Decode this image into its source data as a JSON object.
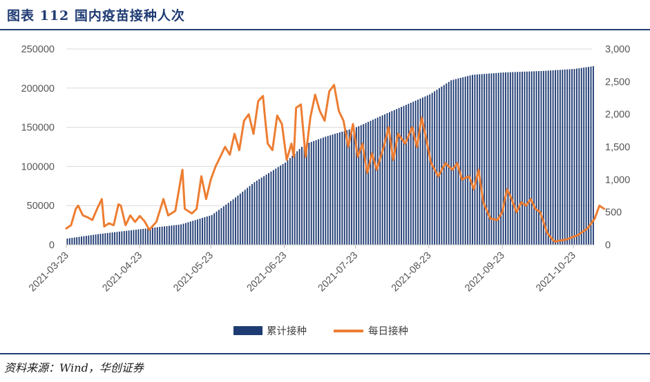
{
  "header": {
    "title": "图表 112    国内疫苗接种人次"
  },
  "footer": {
    "source": "资料来源：Wind，华创证券"
  },
  "colors": {
    "bar": "#1f3b73",
    "line": "#ed7d31",
    "grid": "#d9d9d9",
    "rule": "#1f3b73"
  },
  "chart_data": {
    "type": "bar",
    "x_start": "2021-03-23",
    "x_end": "2021-10-31",
    "x_tick_labels": [
      "2021-03-23",
      "2021-04-23",
      "2021-05-23",
      "2021-06-23",
      "2021-07-23",
      "2021-08-23",
      "2021-09-23",
      "2021-10-23"
    ],
    "y_left": {
      "min": 0,
      "max": 250000,
      "tick_labels": [
        "0",
        "50000",
        "100000",
        "150000",
        "200000",
        "250000"
      ]
    },
    "y_right": {
      "min": 0,
      "max": 3000,
      "tick_labels": [
        "0",
        "500",
        "1,000",
        "1,500",
        "2,000",
        "2,500",
        "3,000"
      ]
    },
    "legend_position": "bottom",
    "gridlines": true,
    "series": [
      {
        "name": "累计接种",
        "type": "bar",
        "axis": "left",
        "points": [
          [
            "2021-03-23",
            8000
          ],
          [
            "2021-04-06",
            14000
          ],
          [
            "2021-04-23",
            20000
          ],
          [
            "2021-05-10",
            26000
          ],
          [
            "2021-05-23",
            38000
          ],
          [
            "2021-06-01",
            58000
          ],
          [
            "2021-06-10",
            80000
          ],
          [
            "2021-06-23",
            105000
          ],
          [
            "2021-07-01",
            128000
          ],
          [
            "2021-07-10",
            138000
          ],
          [
            "2021-07-23",
            150000
          ],
          [
            "2021-08-05",
            168000
          ],
          [
            "2021-08-23",
            192000
          ],
          [
            "2021-09-01",
            210000
          ],
          [
            "2021-09-10",
            217000
          ],
          [
            "2021-09-23",
            220000
          ],
          [
            "2021-10-10",
            222000
          ],
          [
            "2021-10-23",
            224500
          ],
          [
            "2021-10-31",
            228000
          ]
        ]
      },
      {
        "name": "每日接种",
        "type": "line",
        "axis": "right",
        "points": [
          [
            "2021-03-23",
            250
          ],
          [
            "2021-03-25",
            300
          ],
          [
            "2021-03-27",
            550
          ],
          [
            "2021-03-28",
            600
          ],
          [
            "2021-03-30",
            450
          ],
          [
            "2021-04-01",
            420
          ],
          [
            "2021-04-03",
            380
          ],
          [
            "2021-04-05",
            550
          ],
          [
            "2021-04-07",
            700
          ],
          [
            "2021-04-08",
            280
          ],
          [
            "2021-04-10",
            330
          ],
          [
            "2021-04-12",
            300
          ],
          [
            "2021-04-14",
            620
          ],
          [
            "2021-04-15",
            600
          ],
          [
            "2021-04-17",
            300
          ],
          [
            "2021-04-19",
            450
          ],
          [
            "2021-04-21",
            350
          ],
          [
            "2021-04-23",
            440
          ],
          [
            "2021-04-25",
            360
          ],
          [
            "2021-04-27",
            230
          ],
          [
            "2021-04-30",
            350
          ],
          [
            "2021-05-03",
            700
          ],
          [
            "2021-05-05",
            450
          ],
          [
            "2021-05-08",
            520
          ],
          [
            "2021-05-11",
            1150
          ],
          [
            "2021-05-12",
            550
          ],
          [
            "2021-05-15",
            480
          ],
          [
            "2021-05-17",
            550
          ],
          [
            "2021-05-19",
            1050
          ],
          [
            "2021-05-21",
            700
          ],
          [
            "2021-05-23",
            1000
          ],
          [
            "2021-05-25",
            1200
          ],
          [
            "2021-05-27",
            1350
          ],
          [
            "2021-05-29",
            1500
          ],
          [
            "2021-05-31",
            1380
          ],
          [
            "2021-06-02",
            1700
          ],
          [
            "2021-06-04",
            1450
          ],
          [
            "2021-06-06",
            1900
          ],
          [
            "2021-06-08",
            2000
          ],
          [
            "2021-06-10",
            1700
          ],
          [
            "2021-06-12",
            2200
          ],
          [
            "2021-06-14",
            2280
          ],
          [
            "2021-06-15",
            1900
          ],
          [
            "2021-06-16",
            1550
          ],
          [
            "2021-06-18",
            1450
          ],
          [
            "2021-06-20",
            1980
          ],
          [
            "2021-06-22",
            1850
          ],
          [
            "2021-06-24",
            1300
          ],
          [
            "2021-06-26",
            1550
          ],
          [
            "2021-06-27",
            1350
          ],
          [
            "2021-06-28",
            2100
          ],
          [
            "2021-06-30",
            2150
          ],
          [
            "2021-07-02",
            1350
          ],
          [
            "2021-07-04",
            1950
          ],
          [
            "2021-07-06",
            2300
          ],
          [
            "2021-07-08",
            2050
          ],
          [
            "2021-07-10",
            1900
          ],
          [
            "2021-07-12",
            2350
          ],
          [
            "2021-07-14",
            2450
          ],
          [
            "2021-07-16",
            2050
          ],
          [
            "2021-07-18",
            1900
          ],
          [
            "2021-07-20",
            1500
          ],
          [
            "2021-07-22",
            1850
          ],
          [
            "2021-07-24",
            1350
          ],
          [
            "2021-07-26",
            1550
          ],
          [
            "2021-07-28",
            1100
          ],
          [
            "2021-07-30",
            1400
          ],
          [
            "2021-08-01",
            1150
          ],
          [
            "2021-08-04",
            1500
          ],
          [
            "2021-08-06",
            1800
          ],
          [
            "2021-08-08",
            1300
          ],
          [
            "2021-08-10",
            1700
          ],
          [
            "2021-08-13",
            1550
          ],
          [
            "2021-08-16",
            1800
          ],
          [
            "2021-08-18",
            1500
          ],
          [
            "2021-08-20",
            1950
          ],
          [
            "2021-08-22",
            1600
          ],
          [
            "2021-08-24",
            1250
          ],
          [
            "2021-08-27",
            1050
          ],
          [
            "2021-08-30",
            1250
          ],
          [
            "2021-09-02",
            1150
          ],
          [
            "2021-09-04",
            1250
          ],
          [
            "2021-09-06",
            1000
          ],
          [
            "2021-09-09",
            1050
          ],
          [
            "2021-09-11",
            850
          ],
          [
            "2021-09-13",
            1150
          ],
          [
            "2021-09-15",
            650
          ],
          [
            "2021-09-18",
            400
          ],
          [
            "2021-09-21",
            380
          ],
          [
            "2021-09-23",
            500
          ],
          [
            "2021-09-25",
            850
          ],
          [
            "2021-09-27",
            700
          ],
          [
            "2021-09-29",
            500
          ],
          [
            "2021-10-01",
            650
          ],
          [
            "2021-10-03",
            600
          ],
          [
            "2021-10-05",
            700
          ],
          [
            "2021-10-07",
            550
          ],
          [
            "2021-10-09",
            500
          ],
          [
            "2021-10-12",
            180
          ],
          [
            "2021-10-15",
            50
          ],
          [
            "2021-10-20",
            80
          ],
          [
            "2021-10-25",
            150
          ],
          [
            "2021-10-29",
            250
          ],
          [
            "2021-11-01",
            400
          ],
          [
            "2021-11-03",
            600
          ],
          [
            "2021-11-05",
            550
          ]
        ]
      }
    ]
  }
}
